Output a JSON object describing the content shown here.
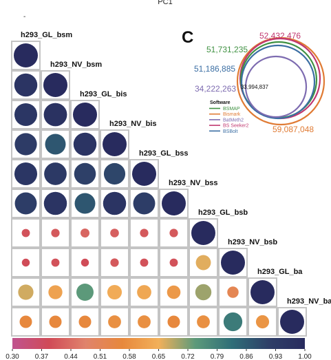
{
  "top_label": "PC1",
  "stray_mark": "-",
  "chart_data": [
    {
      "type": "heatmap",
      "title": "",
      "labels": [
        "h293_GL_bsm",
        "h293_NV_bsm",
        "h293_GL_bis",
        "h293_NV_bis",
        "h293_GL_bss",
        "h293_NV_bss",
        "h293_GL_bsb",
        "h293_NV_bsb",
        "h293_GL_ba",
        "h293_NV_ba"
      ],
      "matrix_lower": [
        [
          1.0
        ],
        [
          0.96,
          1.0
        ],
        [
          0.95,
          0.97,
          1.0
        ],
        [
          0.93,
          0.87,
          0.96,
          1.0
        ],
        [
          0.95,
          0.94,
          0.91,
          0.9,
          1.0
        ],
        [
          0.92,
          0.96,
          0.87,
          0.96,
          0.92,
          1.0
        ],
        [
          0.4,
          0.41,
          0.43,
          0.42,
          0.41,
          0.41,
          1.0
        ],
        [
          0.39,
          0.4,
          0.39,
          0.41,
          0.4,
          0.4,
          0.66,
          1.0
        ],
        [
          0.67,
          0.62,
          0.74,
          0.64,
          0.63,
          0.6,
          0.7,
          0.52,
          1.0
        ],
        [
          0.56,
          0.56,
          0.56,
          0.58,
          0.58,
          0.56,
          0.58,
          0.8,
          0.59,
          1.0
        ]
      ],
      "color_scale": {
        "min": 0.3,
        "max": 1.0,
        "ticks": [
          "0.30",
          "0.37",
          "0.44",
          "0.51",
          "0.58",
          "0.65",
          "0.72",
          "0.79",
          "0.86",
          "0.93",
          "1.00"
        ],
        "stops": [
          "#c0538f",
          "#d04a57",
          "#e0836c",
          "#e7883c",
          "#f2b05a",
          "#5d9a7a",
          "#2f6e78",
          "#2e3f68",
          "#282b5e"
        ]
      }
    },
    {
      "type": "venn",
      "panel_label": "C",
      "center_value": "33,994,837",
      "sets": [
        {
          "name": "BSMAP",
          "value": "51,731,235",
          "color": "#3f9142"
        },
        {
          "name": "Bismark",
          "value": "59,087,048",
          "color": "#e07b34"
        },
        {
          "name": "BatMeth2",
          "value": "34,222,263",
          "color": "#7d6bb0"
        },
        {
          "name": "BS Seeker2",
          "value": "52,432,476",
          "color": "#c0376f"
        },
        {
          "name": "BSBolt",
          "value": "51,186,885",
          "color": "#3b6ea3"
        }
      ],
      "legend_title": "Software"
    }
  ]
}
